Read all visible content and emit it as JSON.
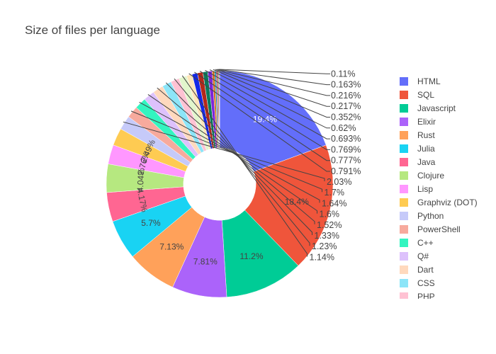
{
  "chart_data": {
    "type": "pie",
    "title": "Size of files per language",
    "hole": 0.32,
    "slices": [
      {
        "label": "HTML",
        "value": 19.4,
        "text": "19.4%",
        "color": "#636efa",
        "text_color": "#ffffff"
      },
      {
        "label": "SQL",
        "value": 18.4,
        "text": "18.4%",
        "color": "#ef553b",
        "text_color": "#444444"
      },
      {
        "label": "Javascript",
        "value": 11.2,
        "text": "11.2%",
        "color": "#00cc96",
        "text_color": "#444444"
      },
      {
        "label": "Elixir",
        "value": 7.81,
        "text": "7.81%",
        "color": "#ab63fa",
        "text_color": "#444444"
      },
      {
        "label": "Rust",
        "value": 7.13,
        "text": "7.13%",
        "color": "#ffa15a",
        "text_color": "#444444"
      },
      {
        "label": "Julia",
        "value": 5.7,
        "text": "5.7%",
        "color": "#19d3f3",
        "text_color": "#444444"
      },
      {
        "label": "Java",
        "value": 4.17,
        "text": "4.17%",
        "color": "#ff6692",
        "text_color": "#444444"
      },
      {
        "label": "Clojure",
        "value": 4.04,
        "text": "4.04%",
        "color": "#b6e880",
        "text_color": "#444444"
      },
      {
        "label": "Lisp",
        "value": 2.76,
        "text": "2.76%",
        "color": "#ff97ff",
        "text_color": "#444444"
      },
      {
        "label": "Graphviz (DOT)",
        "value": 2.49,
        "text": "2.49%",
        "color": "#fecb52",
        "text_color": "#444444"
      },
      {
        "label": "Python",
        "value": 2.03,
        "text": "2.03%",
        "color": "#c6caf9",
        "text_color": "#444444"
      },
      {
        "label": "PowerShell",
        "value": 1.7,
        "text": "1.7%",
        "color": "#f7aa9d",
        "text_color": "#444444"
      },
      {
        "label": "C++",
        "value": 1.64,
        "text": "1.64%",
        "color": "#33f5c0",
        "text_color": "#444444"
      },
      {
        "label": "Q#",
        "value": 1.6,
        "text": "1.6%",
        "color": "#ddc1fc",
        "text_color": "#444444"
      },
      {
        "label": "Dart",
        "value": 1.52,
        "text": "1.52%",
        "color": "#ffd9bd",
        "text_color": "#444444"
      },
      {
        "label": "CSS",
        "value": 1.33,
        "text": "1.33%",
        "color": "#8ce5f8",
        "text_color": "#444444"
      },
      {
        "label": "PHP",
        "value": 1.23,
        "text": "1.23%",
        "color": "#ffc2d3",
        "text_color": "#444444"
      },
      {
        "label": "",
        "value": 1.14,
        "text": "1.14%",
        "color": "#e2f6cc",
        "text_color": "#444444"
      },
      {
        "label": "",
        "value": 0.791,
        "text": "0.791%",
        "color": "#ffe5b8",
        "text_color": "#444444"
      },
      {
        "label": "",
        "value": 0.777,
        "text": "0.777%",
        "color": "#1427e6",
        "text_color": "#444444"
      },
      {
        "label": "",
        "value": 0.769,
        "text": "0.769%",
        "color": "#b5271a",
        "text_color": "#444444"
      },
      {
        "label": "",
        "value": 0.693,
        "text": "0.693%",
        "color": "#0a7a5c",
        "text_color": "#444444"
      },
      {
        "label": "",
        "value": 0.62,
        "text": "0.62%",
        "color": "#7d25d9",
        "text_color": "#444444"
      },
      {
        "label": "",
        "value": 0.352,
        "text": "0.352%",
        "color": "#d0721c",
        "text_color": "#444444"
      },
      {
        "label": "",
        "value": 0.217,
        "text": "0.217%",
        "color": "#0e91b5",
        "text_color": "#444444"
      },
      {
        "label": "",
        "value": 0.216,
        "text": "0.216%",
        "color": "#c73b68",
        "text_color": "#444444"
      },
      {
        "label": "",
        "value": 0.163,
        "text": "0.163%",
        "color": "#6b9c30",
        "text_color": "#444444"
      },
      {
        "label": "",
        "value": 0.11,
        "text": "0.11%",
        "color": "#c44cc4",
        "text_color": "#444444"
      }
    ],
    "direction": "clockwise",
    "start": "top",
    "legend_position": "right",
    "legend_visible_count": 17
  }
}
